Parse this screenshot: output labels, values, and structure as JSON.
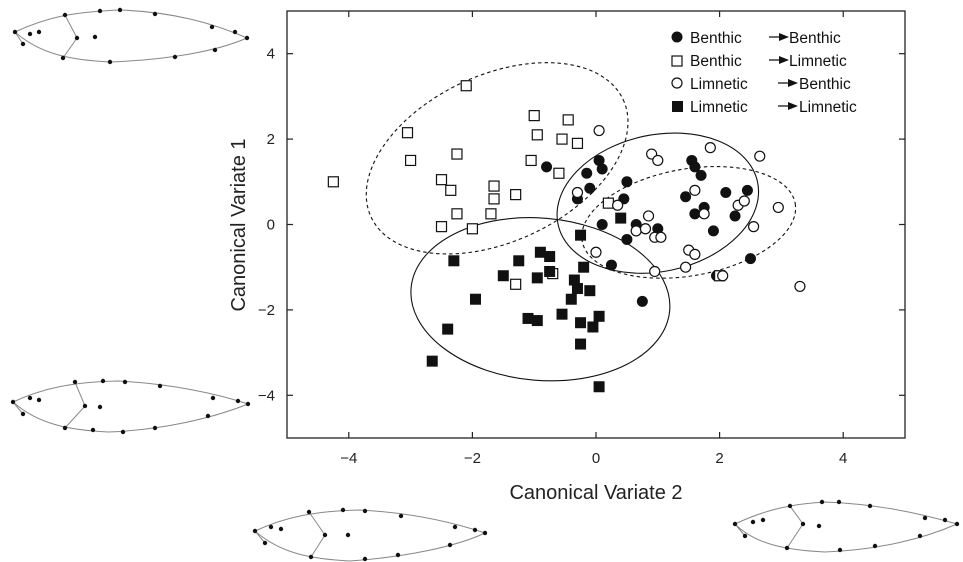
{
  "chart_data": {
    "type": "scatter",
    "xlabel": "Canonical Variate 2",
    "ylabel": "Canonical Variate 1",
    "xlim": [
      -5,
      5
    ],
    "ylim": [
      -5,
      5
    ],
    "xticks": [
      -4,
      -2,
      0,
      2,
      4
    ],
    "yticks": [
      -4,
      -2,
      0,
      2,
      4
    ],
    "grid": false,
    "legend_position": "top-right",
    "series": [
      {
        "name": "Benthic → Benthic",
        "legend_from": "Benthic",
        "legend_to": "Benthic",
        "marker": "filled-circle",
        "points": [
          [
            0.05,
            1.5
          ],
          [
            0.1,
            1.3
          ],
          [
            -0.15,
            1.2
          ],
          [
            -0.8,
            1.35
          ],
          [
            0.5,
            1.0
          ],
          [
            0.45,
            0.6
          ],
          [
            -0.1,
            0.85
          ],
          [
            -0.3,
            0.6
          ],
          [
            0.65,
            0.0
          ],
          [
            0.8,
            -0.1
          ],
          [
            1.0,
            -0.1
          ],
          [
            0.5,
            -0.35
          ],
          [
            0.25,
            -0.95
          ],
          [
            0.1,
            0.0
          ],
          [
            0.75,
            -1.8
          ],
          [
            1.55,
            1.5
          ],
          [
            1.6,
            1.35
          ],
          [
            1.7,
            1.15
          ],
          [
            1.45,
            0.65
          ],
          [
            1.6,
            0.25
          ],
          [
            1.75,
            0.4
          ],
          [
            1.9,
            -0.15
          ],
          [
            2.1,
            0.75
          ],
          [
            2.25,
            0.2
          ],
          [
            2.45,
            0.8
          ],
          [
            2.5,
            -0.8
          ],
          [
            1.95,
            -1.2
          ]
        ]
      },
      {
        "name": "Benthic → Limnetic",
        "legend_from": "Benthic",
        "legend_to": "Limnetic",
        "marker": "open-square",
        "points": [
          [
            -2.1,
            3.25
          ],
          [
            -1.0,
            2.55
          ],
          [
            -0.45,
            2.45
          ],
          [
            -0.95,
            2.1
          ],
          [
            -0.55,
            2.0
          ],
          [
            -0.3,
            1.9
          ],
          [
            -3.05,
            2.15
          ],
          [
            -2.25,
            1.65
          ],
          [
            -3.0,
            1.5
          ],
          [
            -1.05,
            1.5
          ],
          [
            -0.6,
            1.2
          ],
          [
            -4.25,
            1.0
          ],
          [
            -2.5,
            1.05
          ],
          [
            -2.35,
            0.8
          ],
          [
            -1.65,
            0.9
          ],
          [
            -1.65,
            0.6
          ],
          [
            -1.3,
            0.7
          ],
          [
            -2.25,
            0.25
          ],
          [
            -1.7,
            0.25
          ],
          [
            -2.5,
            -0.05
          ],
          [
            -2.0,
            -0.1
          ],
          [
            -0.7,
            -1.15
          ],
          [
            -1.3,
            -1.4
          ],
          [
            0.2,
            0.5
          ],
          [
            2.0,
            -1.2
          ]
        ]
      },
      {
        "name": "Limnetic → Benthic",
        "legend_from": "Limnetic",
        "legend_to": "Benthic",
        "marker": "open-circle",
        "points": [
          [
            0.05,
            2.2
          ],
          [
            0.9,
            1.65
          ],
          [
            1.0,
            1.5
          ],
          [
            1.85,
            1.8
          ],
          [
            2.65,
            1.6
          ],
          [
            -0.3,
            0.75
          ],
          [
            0.35,
            0.45
          ],
          [
            1.6,
            0.8
          ],
          [
            2.3,
            0.45
          ],
          [
            2.4,
            0.55
          ],
          [
            1.75,
            0.25
          ],
          [
            2.95,
            0.4
          ],
          [
            0.65,
            -0.15
          ],
          [
            0.85,
            0.2
          ],
          [
            0.95,
            -0.3
          ],
          [
            1.05,
            -0.3
          ],
          [
            0.8,
            -0.1
          ],
          [
            0.0,
            -0.65
          ],
          [
            1.5,
            -0.6
          ],
          [
            1.6,
            -0.7
          ],
          [
            1.45,
            -1.0
          ],
          [
            0.95,
            -1.1
          ],
          [
            2.55,
            -0.05
          ],
          [
            3.3,
            -1.45
          ],
          [
            2.05,
            -1.2
          ]
        ]
      },
      {
        "name": "Limnetic → Limnetic",
        "legend_from": "Limnetic",
        "legend_to": "Limnetic",
        "marker": "filled-square",
        "points": [
          [
            0.4,
            0.15
          ],
          [
            -0.25,
            -0.25
          ],
          [
            -2.3,
            -0.85
          ],
          [
            -1.25,
            -0.85
          ],
          [
            -0.9,
            -0.65
          ],
          [
            -0.75,
            -0.75
          ],
          [
            -1.5,
            -1.2
          ],
          [
            -0.75,
            -1.1
          ],
          [
            -0.95,
            -1.25
          ],
          [
            -0.2,
            -1.0
          ],
          [
            -0.35,
            -1.3
          ],
          [
            -0.3,
            -1.5
          ],
          [
            -0.1,
            -1.55
          ],
          [
            -0.4,
            -1.75
          ],
          [
            -1.95,
            -1.75
          ],
          [
            -0.55,
            -2.1
          ],
          [
            -1.1,
            -2.2
          ],
          [
            -0.95,
            -2.25
          ],
          [
            -0.25,
            -2.3
          ],
          [
            0.05,
            -2.15
          ],
          [
            -0.05,
            -2.4
          ],
          [
            -2.4,
            -2.45
          ],
          [
            -0.25,
            -2.8
          ],
          [
            -2.65,
            -3.2
          ],
          [
            0.05,
            -3.8
          ]
        ]
      }
    ],
    "ellipses": [
      {
        "series": "Benthic → Limnetic",
        "style": "dashed",
        "cx": -1.6,
        "cy": 1.55,
        "rx": 2.25,
        "ry": 1.95,
        "rotation_deg": -25
      },
      {
        "series": "Limnetic → Benthic",
        "style": "dashed",
        "cx": 1.5,
        "cy": 0.05,
        "rx": 1.75,
        "ry": 1.25,
        "rotation_deg": -10
      },
      {
        "series": "Benthic → Benthic",
        "style": "solid",
        "cx": 1.0,
        "cy": 0.5,
        "rx": 1.65,
        "ry": 1.6,
        "rotation_deg": -12
      },
      {
        "series": "Limnetic → Limnetic",
        "style": "solid",
        "cx": -0.9,
        "cy": -1.75,
        "rx": 2.1,
        "ry": 1.9,
        "rotation_deg": 5
      }
    ]
  },
  "figure_colors": {
    "ink": "#111111",
    "frame": "#222222",
    "fish_outline": "#888888",
    "background": "#ffffff"
  }
}
